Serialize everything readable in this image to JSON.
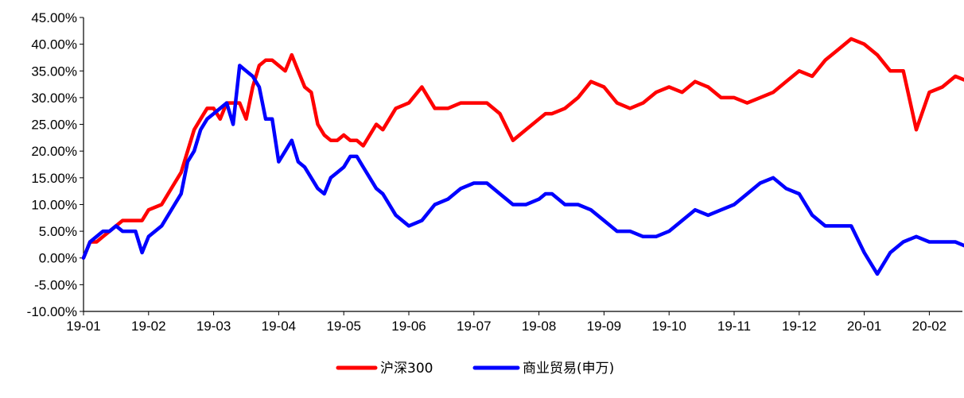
{
  "chart_data": {
    "type": "line",
    "title": "",
    "xlabel": "",
    "ylabel": "",
    "ylim": [
      -0.1,
      0.45
    ],
    "y_ticks": [
      "45.00%",
      "40.00%",
      "35.00%",
      "30.00%",
      "25.00%",
      "20.00%",
      "15.00%",
      "10.00%",
      "5.00%",
      "0.00%",
      "-5.00%",
      "-10.00%"
    ],
    "y_tick_values": [
      0.45,
      0.4,
      0.35,
      0.3,
      0.25,
      0.2,
      0.15,
      0.1,
      0.05,
      0.0,
      -0.05,
      -0.1
    ],
    "x_ticks": [
      "19-01",
      "19-02",
      "19-03",
      "19-04",
      "19-05",
      "19-06",
      "19-07",
      "19-08",
      "19-09",
      "19-10",
      "19-11",
      "19-12",
      "20-01",
      "20-02"
    ],
    "xlim": [
      0,
      13.6
    ],
    "grid": false,
    "legend_position": "bottom-center",
    "series": [
      {
        "name": "沪深300",
        "color": "#ff0000",
        "x": [
          0,
          0.1,
          0.2,
          0.3,
          0.4,
          0.5,
          0.6,
          0.7,
          0.8,
          0.9,
          1.0,
          1.2,
          1.4,
          1.5,
          1.6,
          1.7,
          1.8,
          1.9,
          2.0,
          2.1,
          2.2,
          2.3,
          2.4,
          2.5,
          2.6,
          2.7,
          2.8,
          2.9,
          3.0,
          3.1,
          3.2,
          3.3,
          3.4,
          3.5,
          3.6,
          3.7,
          3.8,
          3.9,
          4.0,
          4.1,
          4.2,
          4.3,
          4.4,
          4.5,
          4.6,
          4.7,
          4.8,
          5.0,
          5.2,
          5.4,
          5.6,
          5.8,
          6.0,
          6.2,
          6.4,
          6.6,
          6.8,
          7.0,
          7.1,
          7.2,
          7.4,
          7.6,
          7.8,
          8.0,
          8.2,
          8.4,
          8.6,
          8.8,
          9.0,
          9.2,
          9.4,
          9.6,
          9.8,
          10.0,
          10.2,
          10.4,
          10.6,
          10.8,
          11.0,
          11.2,
          11.4,
          11.6,
          11.8,
          12.0,
          12.2,
          12.4,
          12.6,
          12.8,
          13.0,
          13.2,
          13.4,
          13.6
        ],
        "values": [
          0.0,
          0.03,
          0.03,
          0.04,
          0.05,
          0.06,
          0.07,
          0.07,
          0.07,
          0.07,
          0.09,
          0.1,
          0.14,
          0.16,
          0.2,
          0.24,
          0.26,
          0.28,
          0.28,
          0.26,
          0.29,
          0.29,
          0.29,
          0.26,
          0.32,
          0.36,
          0.37,
          0.37,
          0.36,
          0.35,
          0.38,
          0.35,
          0.32,
          0.31,
          0.25,
          0.23,
          0.22,
          0.22,
          0.23,
          0.22,
          0.22,
          0.21,
          0.23,
          0.25,
          0.24,
          0.26,
          0.28,
          0.29,
          0.32,
          0.28,
          0.28,
          0.29,
          0.29,
          0.29,
          0.27,
          0.22,
          0.24,
          0.26,
          0.27,
          0.27,
          0.28,
          0.3,
          0.33,
          0.32,
          0.29,
          0.28,
          0.29,
          0.31,
          0.32,
          0.31,
          0.33,
          0.32,
          0.3,
          0.3,
          0.29,
          0.3,
          0.31,
          0.33,
          0.35,
          0.34,
          0.37,
          0.39,
          0.41,
          0.4,
          0.38,
          0.35,
          0.35,
          0.24,
          0.31,
          0.32,
          0.34,
          0.33
        ]
      },
      {
        "name": "商业贸易(申万)",
        "color": "#0000ff",
        "x": [
          0,
          0.1,
          0.2,
          0.3,
          0.4,
          0.5,
          0.6,
          0.7,
          0.8,
          0.9,
          1.0,
          1.2,
          1.4,
          1.5,
          1.6,
          1.7,
          1.8,
          1.9,
          2.0,
          2.1,
          2.2,
          2.3,
          2.4,
          2.5,
          2.6,
          2.7,
          2.8,
          2.9,
          3.0,
          3.1,
          3.2,
          3.3,
          3.4,
          3.5,
          3.6,
          3.7,
          3.8,
          3.9,
          4.0,
          4.1,
          4.2,
          4.3,
          4.4,
          4.5,
          4.6,
          4.7,
          4.8,
          5.0,
          5.2,
          5.4,
          5.6,
          5.8,
          6.0,
          6.2,
          6.4,
          6.6,
          6.8,
          7.0,
          7.1,
          7.2,
          7.4,
          7.6,
          7.8,
          8.0,
          8.2,
          8.4,
          8.6,
          8.8,
          9.0,
          9.2,
          9.4,
          9.6,
          9.8,
          10.0,
          10.2,
          10.4,
          10.6,
          10.8,
          11.0,
          11.2,
          11.4,
          11.6,
          11.8,
          12.0,
          12.2,
          12.4,
          12.6,
          12.8,
          13.0,
          13.2,
          13.4,
          13.6
        ],
        "values": [
          0.0,
          0.03,
          0.04,
          0.05,
          0.05,
          0.06,
          0.05,
          0.05,
          0.05,
          0.01,
          0.04,
          0.06,
          0.1,
          0.12,
          0.18,
          0.2,
          0.24,
          0.26,
          0.27,
          0.28,
          0.29,
          0.25,
          0.36,
          0.35,
          0.34,
          0.32,
          0.26,
          0.26,
          0.18,
          0.2,
          0.22,
          0.18,
          0.17,
          0.15,
          0.13,
          0.12,
          0.15,
          0.16,
          0.17,
          0.19,
          0.19,
          0.17,
          0.15,
          0.13,
          0.12,
          0.1,
          0.08,
          0.06,
          0.07,
          0.1,
          0.11,
          0.13,
          0.14,
          0.14,
          0.12,
          0.1,
          0.1,
          0.11,
          0.12,
          0.12,
          0.1,
          0.1,
          0.09,
          0.07,
          0.05,
          0.05,
          0.04,
          0.04,
          0.05,
          0.07,
          0.09,
          0.08,
          0.09,
          0.1,
          0.12,
          0.14,
          0.15,
          0.13,
          0.12,
          0.08,
          0.06,
          0.06,
          0.06,
          0.01,
          -0.03,
          0.01,
          0.03,
          0.04,
          0.03,
          0.03,
          0.03,
          0.02
        ]
      }
    ]
  }
}
